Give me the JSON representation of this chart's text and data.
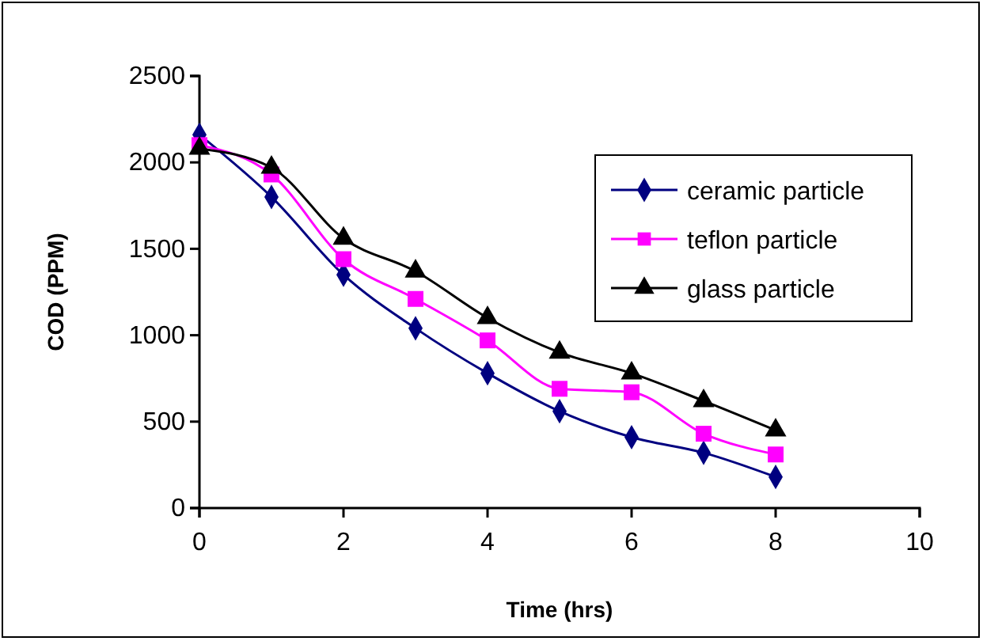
{
  "chart_data": {
    "type": "line",
    "xlabel": "Time (hrs)",
    "ylabel": "COD (PPM)",
    "x": [
      0,
      1,
      2,
      3,
      4,
      5,
      6,
      7,
      8
    ],
    "xlim": [
      0,
      10
    ],
    "xticks": [
      0,
      2,
      4,
      6,
      8,
      10
    ],
    "ylim": [
      0,
      2500
    ],
    "yticks": [
      0,
      500,
      1000,
      1500,
      2000,
      2500
    ],
    "grid": false,
    "legend": "top right",
    "series": [
      {
        "name": "ceramic particle",
        "color": "#000080",
        "marker": "diamond",
        "values": [
          2160,
          1800,
          1350,
          1040,
          780,
          560,
          410,
          320,
          180
        ]
      },
      {
        "name": "teflon particle",
        "color": "#ff00ff",
        "marker": "square",
        "values": [
          2100,
          1930,
          1440,
          1210,
          970,
          690,
          670,
          430,
          310
        ]
      },
      {
        "name": "glass particle",
        "color": "#000000",
        "marker": "triangle",
        "values": [
          2080,
          1970,
          1560,
          1370,
          1100,
          900,
          780,
          620,
          450
        ]
      }
    ]
  }
}
